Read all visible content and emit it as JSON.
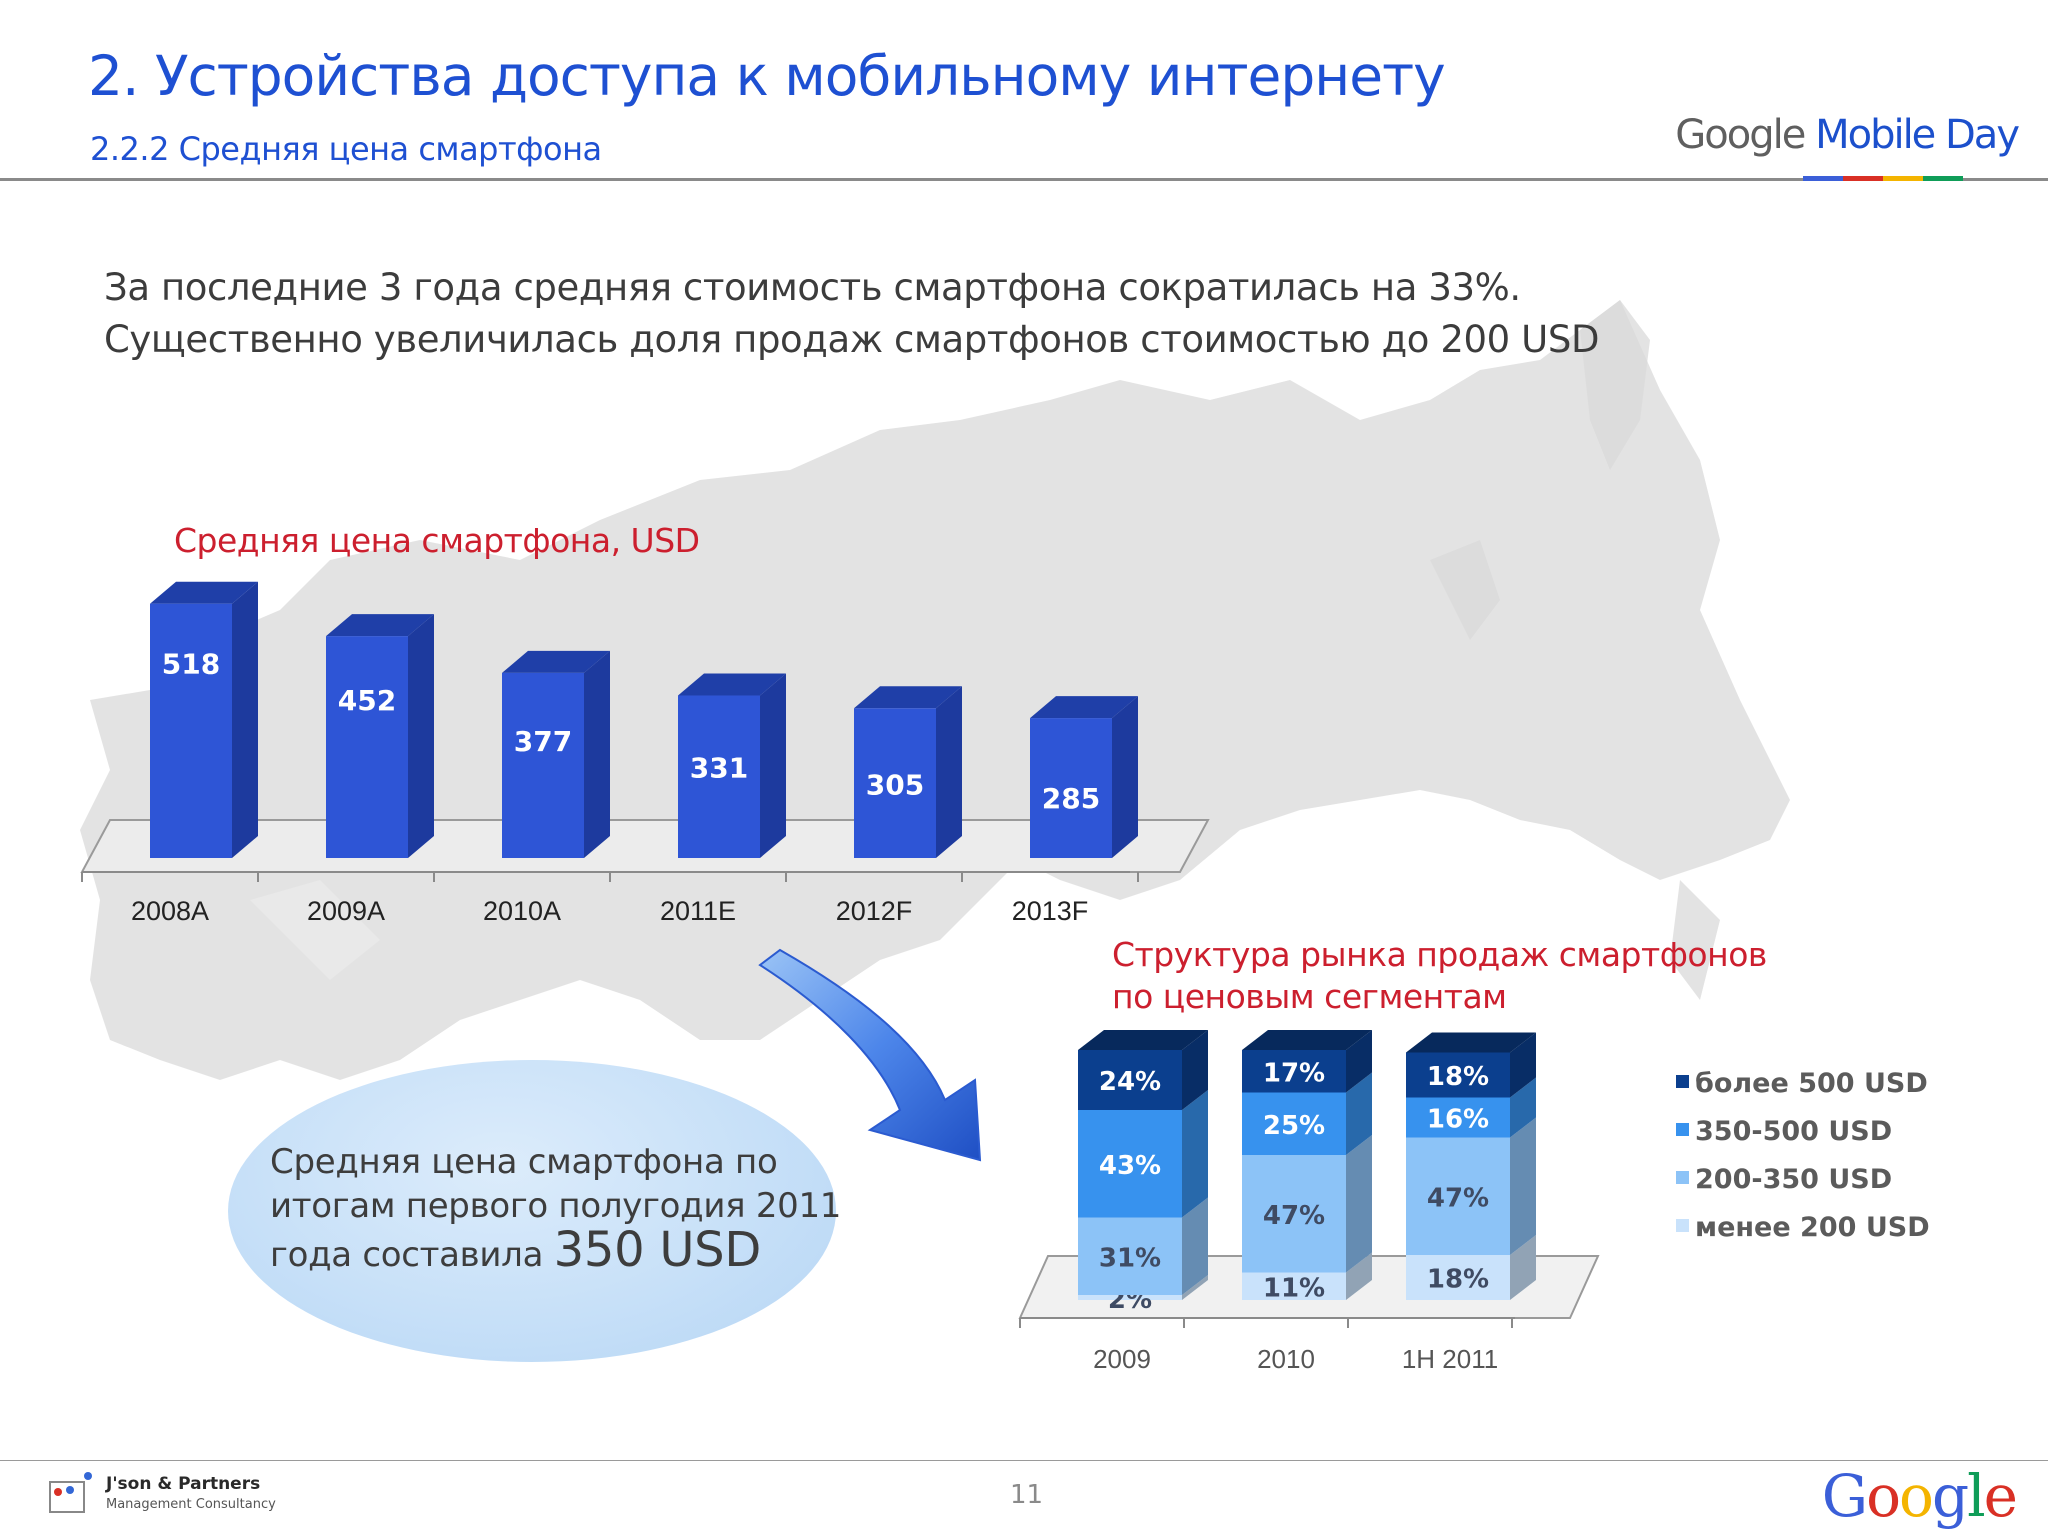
{
  "header": {
    "title": "2. Устройства доступа к мобильному интернету",
    "subtitle": "2.2.2 Средняя цена смартфона",
    "brand_google": "Google",
    "brand_mobile_day": "Mobile Day"
  },
  "lead": {
    "line1": "За последние 3 года средняя стоимость смартфона сократилась на 33%.",
    "line2": "Существенно увеличилась доля продаж смартфонов стоимостью до 200 USD"
  },
  "callout": {
    "line1": "Средняя цена смартфона по",
    "line2": "итогам первого полугодия 2011",
    "line3_prefix": "года составила",
    "line3_value": "350 USD"
  },
  "chart_data": [
    {
      "type": "bar",
      "title": "Средняя цена смартфона, USD",
      "categories": [
        "2008A",
        "2009A",
        "2010A",
        "2011E",
        "2012F",
        "2013F"
      ],
      "values": [
        518,
        452,
        377,
        331,
        305,
        285
      ],
      "ylim": [
        0,
        550
      ],
      "colors": {
        "front": "#2e55d6",
        "side": "#1d3a9e",
        "top": "#1f3fa8"
      }
    },
    {
      "type": "bar",
      "stacked": true,
      "title_line1": "Структура рынка продаж смартфонов",
      "title_line2": "по ценовым сегментам",
      "categories": [
        "2009",
        "2010",
        "1H 2011"
      ],
      "series": [
        {
          "name": "менее 200 USD",
          "values": [
            2,
            11,
            18
          ],
          "labels": [
            "2%",
            "11%",
            "18%"
          ],
          "color": "#c9e2fb"
        },
        {
          "name": "200-350 USD",
          "values": [
            31,
            47,
            47
          ],
          "labels": [
            "31%",
            "47%",
            "47%"
          ],
          "color": "#8cc3f7"
        },
        {
          "name": "350-500 USD",
          "values": [
            43,
            25,
            16
          ],
          "labels": [
            "43%",
            "25%",
            "16%"
          ],
          "color": "#3792ee"
        },
        {
          "name": "более 500 USD",
          "values": [
            24,
            17,
            18
          ],
          "labels": [
            "24%",
            "17%",
            "18%"
          ],
          "color": "#0b3f8e"
        }
      ],
      "legend_order": [
        "более 500 USD",
        "350-500 USD",
        "200-350 USD",
        "менее 200 USD"
      ],
      "legend_position": "right",
      "ylim": [
        0,
        100
      ]
    }
  ],
  "footer": {
    "page_number": "11",
    "partner_name": "J'son & Partners",
    "partner_sub": "Management Consultancy",
    "google_logo": "Google"
  }
}
